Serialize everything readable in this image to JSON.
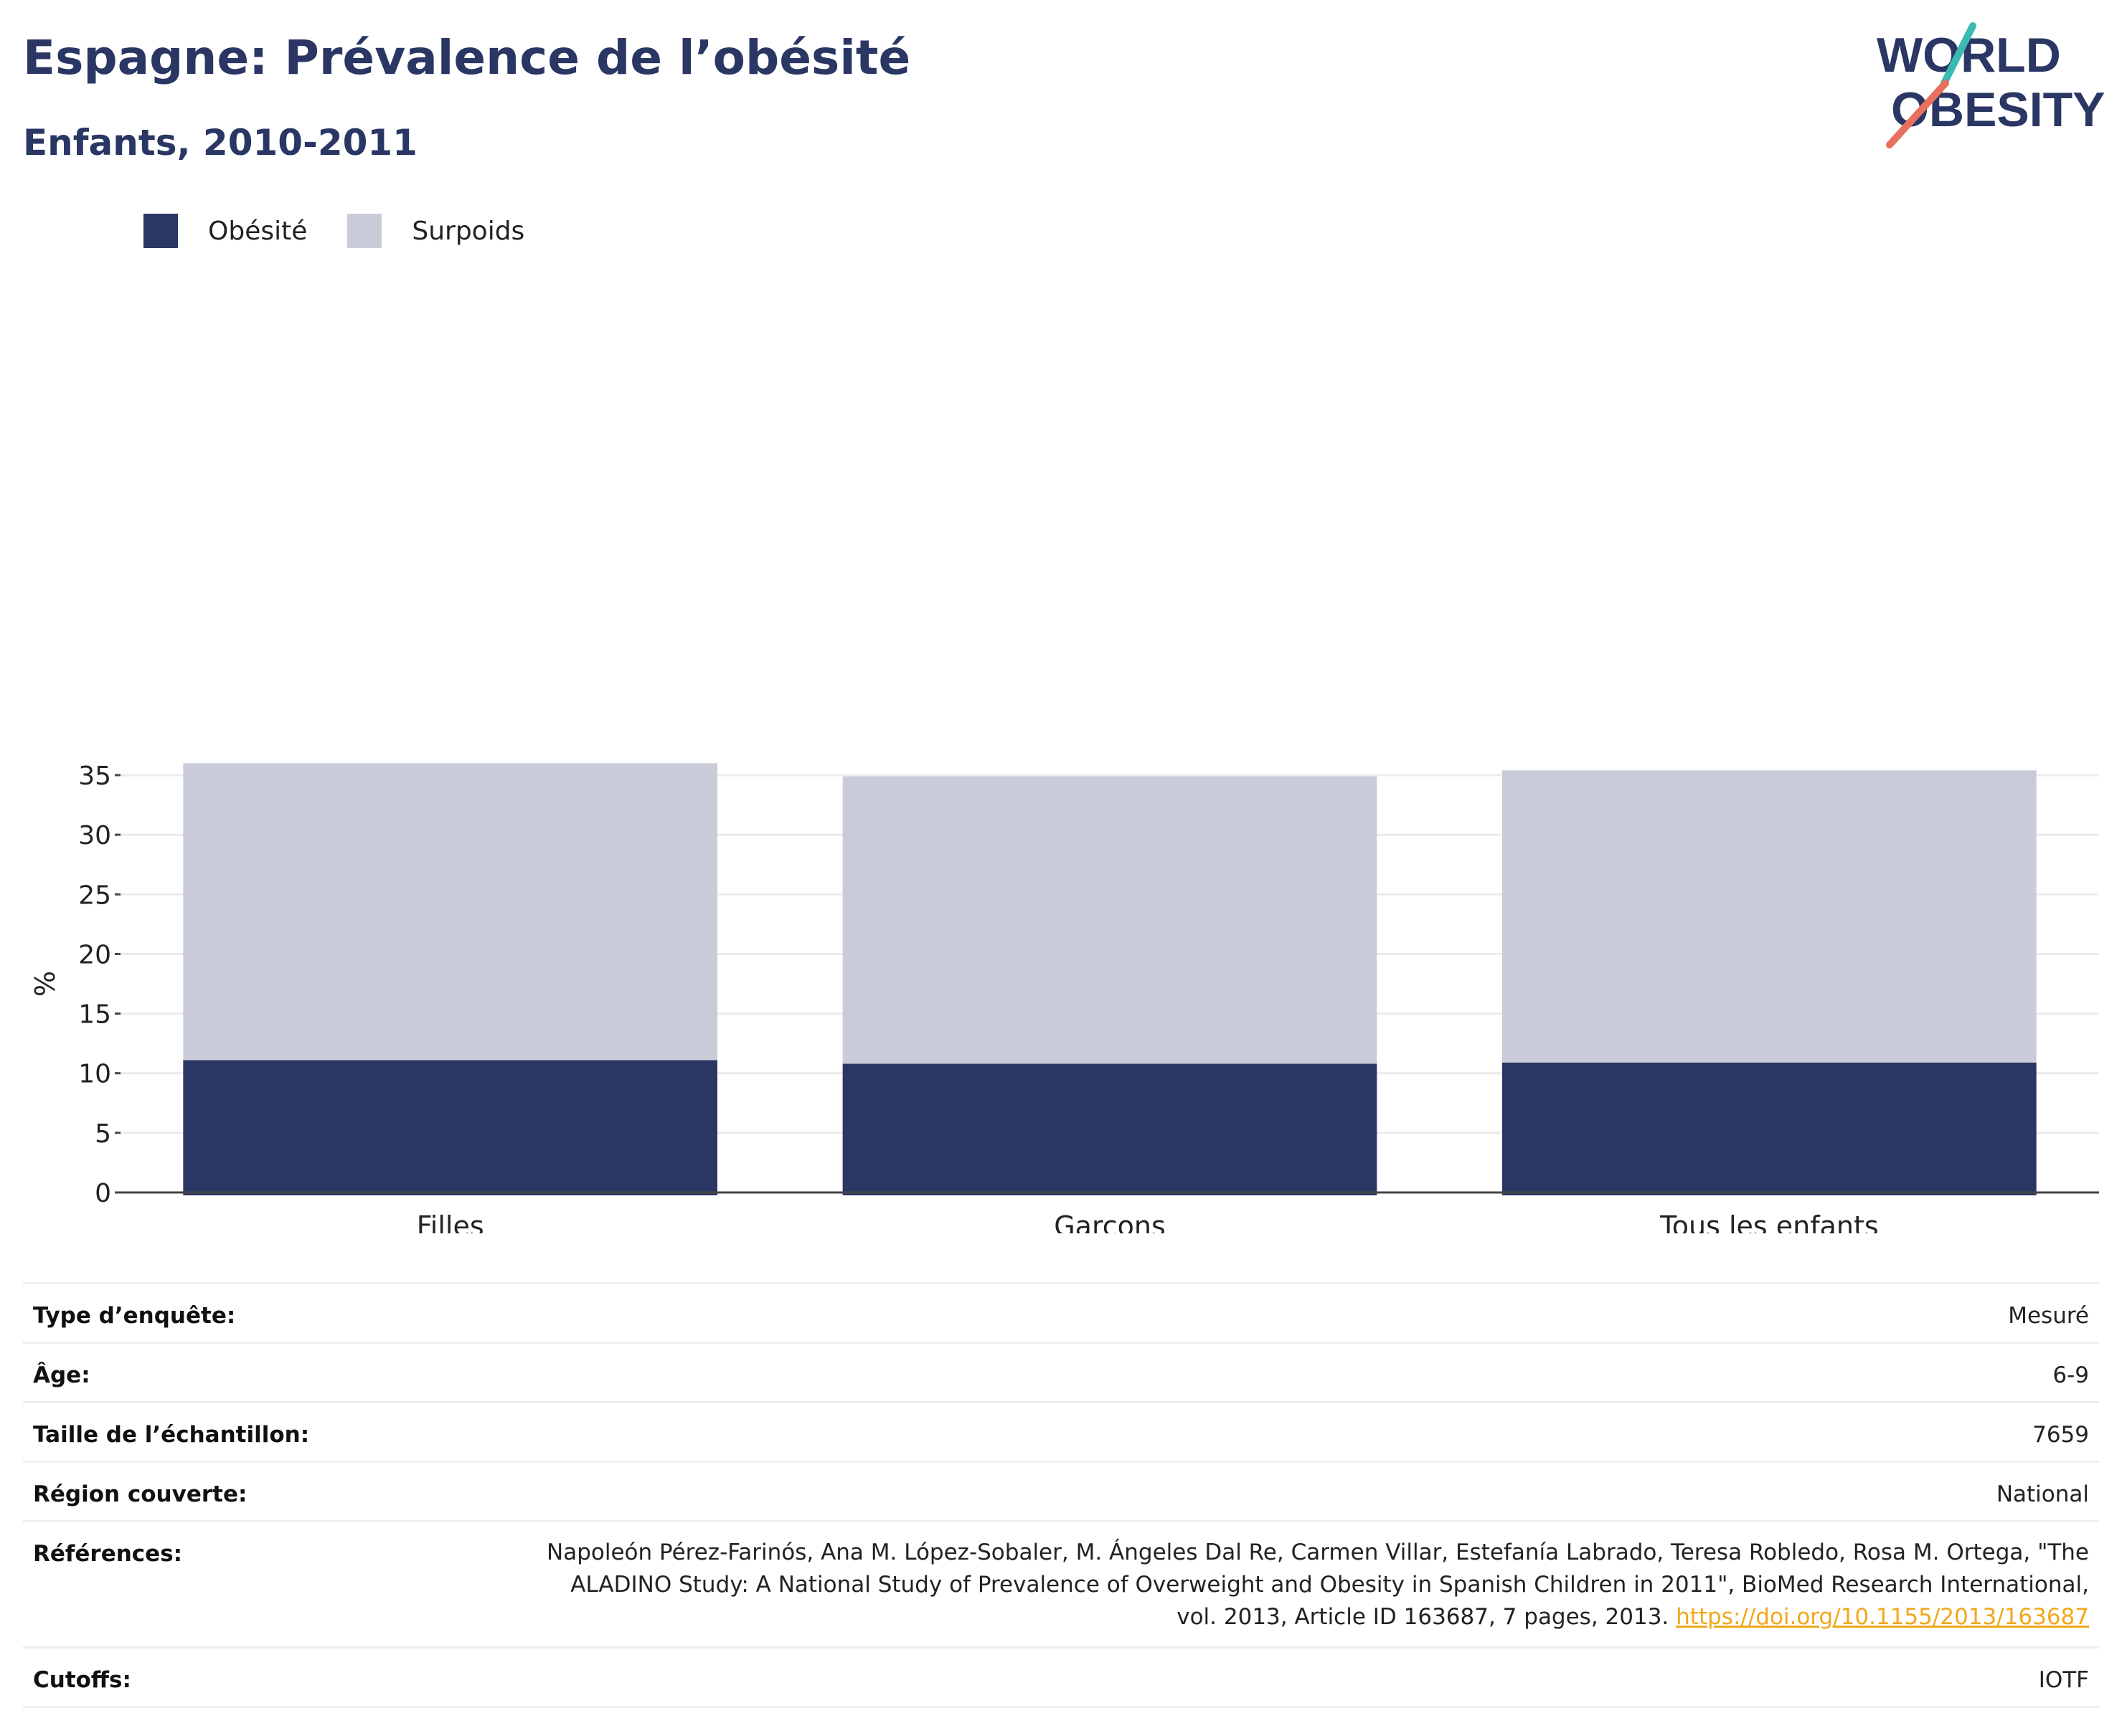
{
  "header": {
    "title": "Espagne: Prévalence de l’obésité",
    "subtitle": "Enfants, 2010-2011"
  },
  "logo": {
    "line1": "WORLD",
    "line2": "OBESITY",
    "colors": {
      "text": "#2a3664",
      "slash_teal": "#3bb9b3",
      "slash_coral": "#e8705f"
    }
  },
  "legend": [
    {
      "label": "Obésité",
      "color": "#2a3664"
    },
    {
      "label": "Surpoids",
      "color": "#c9ccd8"
    }
  ],
  "chart_data": {
    "type": "bar",
    "stacked": true,
    "categories": [
      "Filles",
      "Garçons",
      "Tous les enfants"
    ],
    "series": [
      {
        "name": "Obésité",
        "values": [
          11.1,
          10.8,
          10.9
        ],
        "color": "#2a3664"
      },
      {
        "name": "Surpoids",
        "values": [
          24.9,
          24.1,
          24.5
        ],
        "color": "#c9ccd8"
      }
    ],
    "ylabel": "%",
    "ylim": [
      0,
      36
    ],
    "yticks": [
      0,
      5,
      10,
      15,
      20,
      25,
      30,
      35
    ],
    "grid": true,
    "legend_position": "top-left"
  },
  "meta": {
    "rows": [
      {
        "label": "Type d’enquête:",
        "value": "Mesuré"
      },
      {
        "label": "Âge:",
        "value": "6-9"
      },
      {
        "label": "Taille de l’échantillon:",
        "value": "7659"
      },
      {
        "label": "Région couverte:",
        "value": "National"
      }
    ],
    "references": {
      "label": "Références:",
      "text": "Napoleón Pérez-Farinós, Ana M. López-Sobaler, M. Ángeles Dal Re, Carmen Villar, Estefanía Labrado, Teresa Robledo, Rosa M. Ortega, \"The ALADINO Study: A National Study of Prevalence of Overweight and Obesity in Spanish Children in 2011\", BioMed Research International, vol. 2013, Article ID 163687, 7 pages, 2013.",
      "link": "https://doi.org/10.1155/2013/163687"
    },
    "cutoffs": {
      "label": "Cutoffs:",
      "value": "IOTF"
    }
  }
}
